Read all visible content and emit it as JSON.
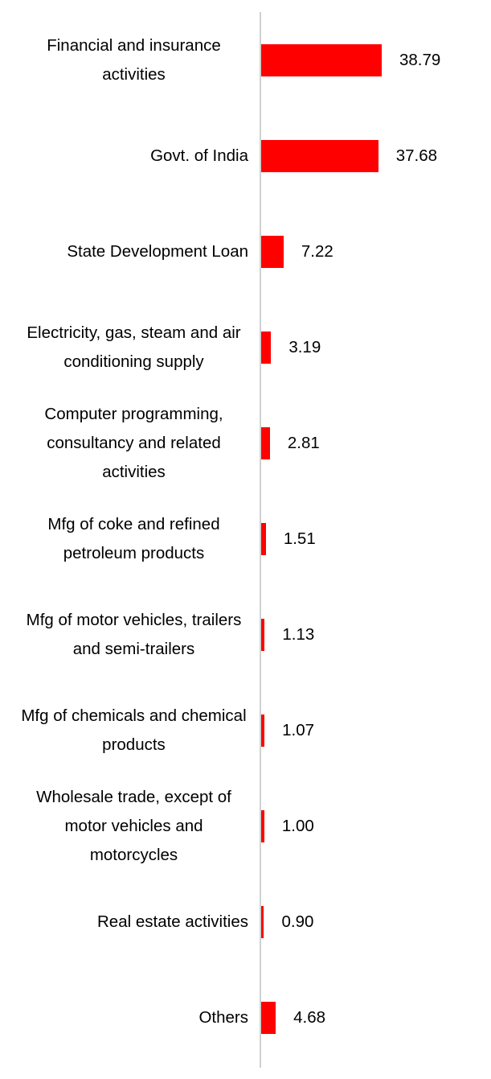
{
  "chart_data": {
    "type": "bar",
    "orientation": "horizontal",
    "color": "#ff0000",
    "categories": [
      "Financial and insurance activities",
      "Govt. of India",
      "State Development Loan",
      "Electricity, gas, steam and air conditioning supply",
      "Computer programming, consultancy and related activities",
      "Mfg of coke and refined petroleum products",
      "Mfg of motor vehicles, trailers and semi-trailers",
      "Mfg of chemicals and chemical products",
      "Wholesale trade, except of motor vehicles and motorcycles",
      "Real estate activities",
      "Others"
    ],
    "values": [
      38.79,
      37.68,
      7.22,
      3.19,
      2.81,
      1.51,
      1.13,
      1.07,
      1.0,
      0.9,
      4.68
    ],
    "value_labels": [
      "38.79",
      "37.68",
      "7.22",
      "3.19",
      "2.81",
      "1.51",
      "1.13",
      "1.07",
      "1.00",
      "0.90",
      "4.68"
    ]
  }
}
